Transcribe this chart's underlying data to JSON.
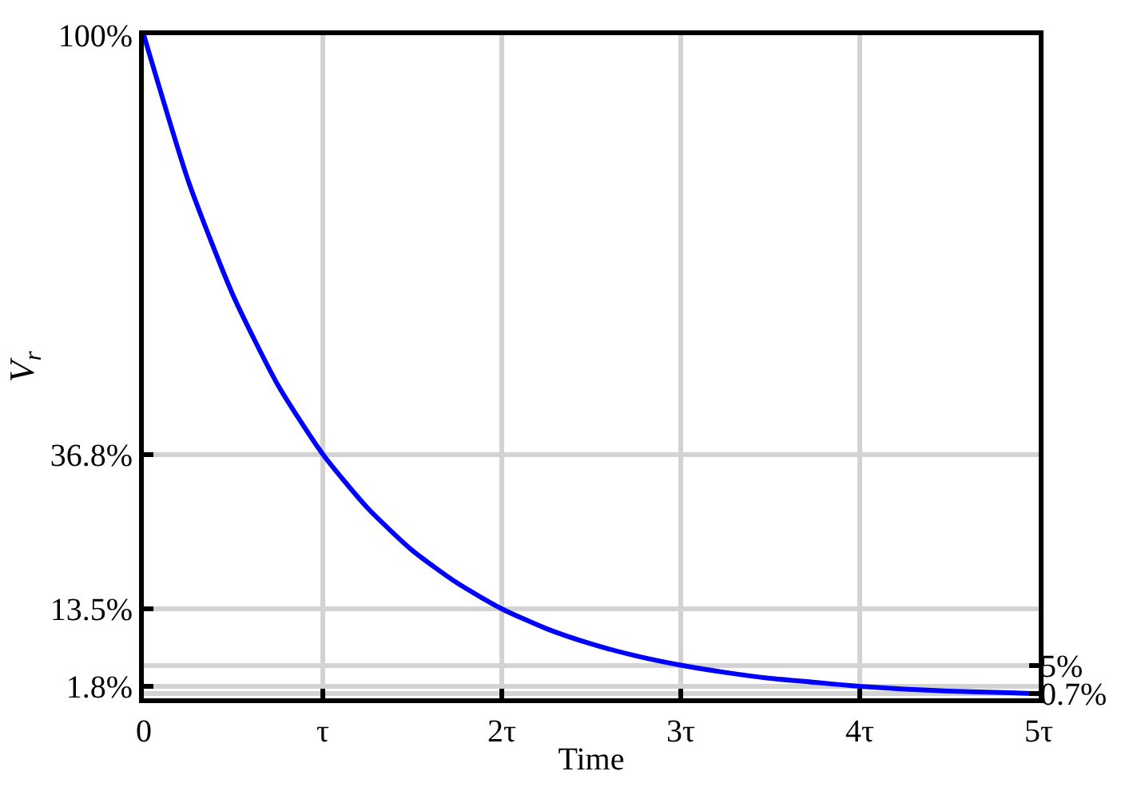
{
  "chart_data": {
    "type": "line",
    "xlabel": "Time",
    "ylabel": "V$_{r}$",
    "x": [
      0,
      0.25,
      0.5,
      0.75,
      1,
      1.25,
      1.5,
      1.75,
      2,
      2.25,
      2.5,
      2.75,
      3,
      3.25,
      3.5,
      3.75,
      4,
      4.25,
      4.5,
      4.75,
      5
    ],
    "series": [
      {
        "color": "#0000ff",
        "values": [
          100,
          77.9,
          60.7,
          47.2,
          36.8,
          28.7,
          22.3,
          17.4,
          13.5,
          10.5,
          8.2,
          6.4,
          5.0,
          3.9,
          3.0,
          2.4,
          1.8,
          1.4,
          1.1,
          0.9,
          0.7
        ]
      }
    ],
    "xlim": [
      0,
      5
    ],
    "xticks": [
      0,
      {
        "value": 1,
        "label": "τ"
      },
      {
        "value": 2,
        "label": "2τ"
      },
      {
        "value": 3,
        "label": "3τ"
      },
      {
        "value": 4,
        "label": "4τ"
      },
      {
        "value": 5,
        "label": "5τ"
      }
    ],
    "ylim": [
      0,
      100
    ],
    "yticks": [
      {
        "value": 1.8,
        "label": "1.8%"
      },
      {
        "value": 13.5,
        "label": "13.5%"
      },
      {
        "value": 36.8,
        "label": "36.8%"
      },
      {
        "value": 100,
        "label": "100%"
      }
    ],
    "y2lim": [
      0,
      100
    ],
    "y2ticks": [
      {
        "value": 0.7,
        "label": "0.7%"
      },
      {
        "value": 5,
        "label": "5%"
      }
    ],
    "grid": true,
    "line_style": "solid",
    "marker": "none"
  }
}
